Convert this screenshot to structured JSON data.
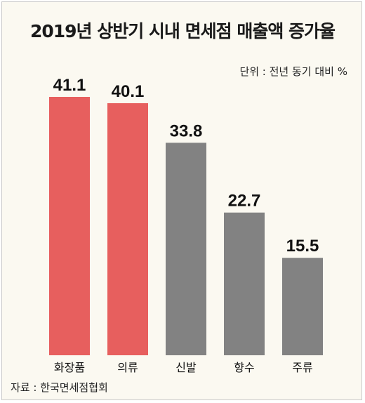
{
  "title": "2019년 상반기 시내 면세점 매출액 증가율",
  "unit_note": "단위 : 전년 동기 대비 %",
  "source": "자료 : 한국면세점협회",
  "colors": {
    "highlight": "#e75f5e",
    "normal": "#828282",
    "background": "#fbf9f1"
  },
  "chart_data": {
    "type": "bar",
    "categories": [
      "화장품",
      "의류",
      "신발",
      "향수",
      "주류"
    ],
    "values": [
      41.1,
      40.1,
      33.8,
      22.7,
      15.5
    ],
    "value_labels": [
      "41.1",
      "40.1",
      "33.8",
      "22.7",
      "15.5"
    ],
    "highlighted": [
      true,
      true,
      false,
      false,
      false
    ],
    "ylim": [
      0,
      41.1
    ],
    "grid": false,
    "legend": "none"
  }
}
